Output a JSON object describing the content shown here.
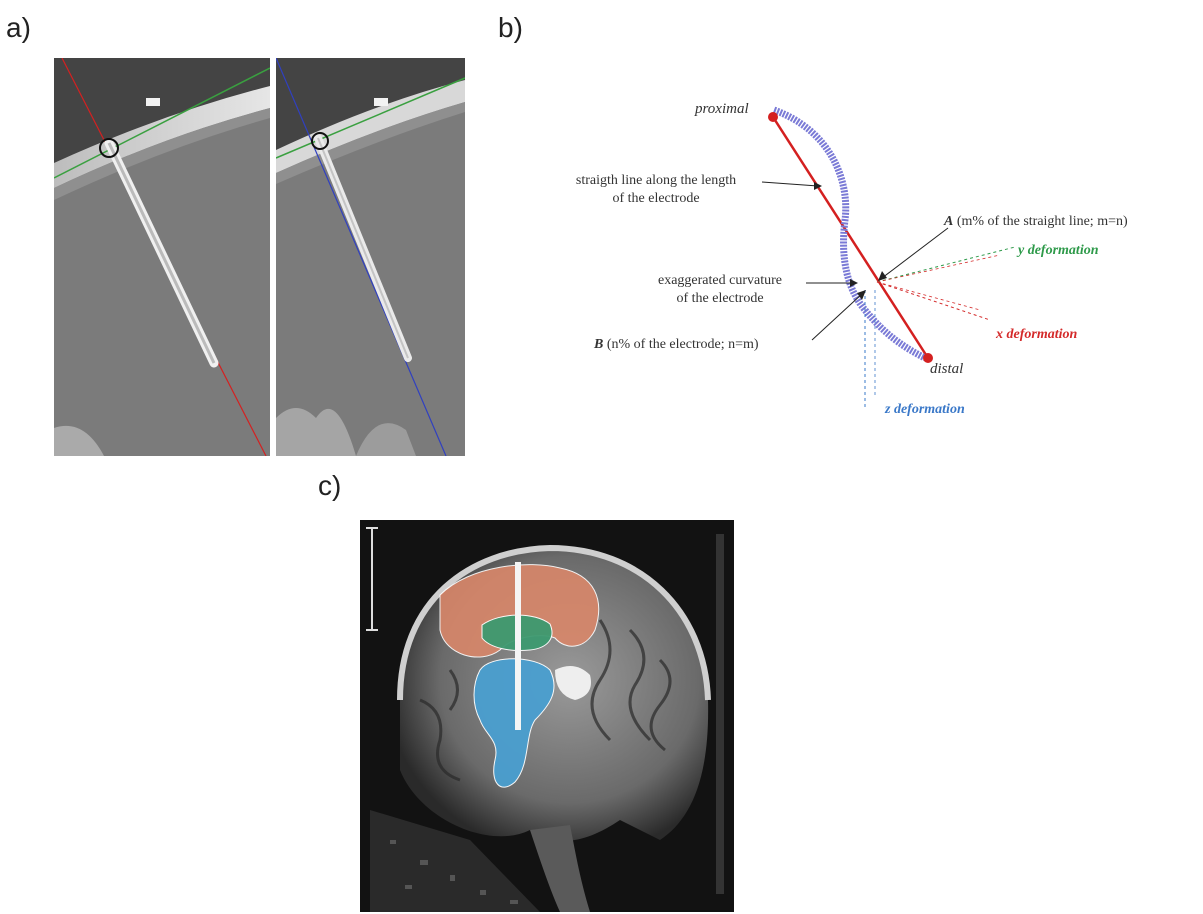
{
  "panels": {
    "a": {
      "label": "a)"
    },
    "b": {
      "label": "b)",
      "proximal": "proximal",
      "distal": "distal",
      "straight_line": [
        "straigth line along the length",
        "of the electrode"
      ],
      "curvature": [
        "exaggerated curvature",
        "of the electrode"
      ],
      "point_a_letter": "A",
      "point_a_text": "(m% of the straight line; m=n)",
      "point_b_letter": "B",
      "point_b_text": "(n% of the electrode; n=m)",
      "y_deformation": "y deformation",
      "x_deformation": "x deformation",
      "z_deformation": "z deformation"
    },
    "c": {
      "label": "c)"
    }
  },
  "colors": {
    "red_line": "#d42020",
    "blue_line": "#3040c0",
    "green_line": "#3aa040",
    "electrode_blue": "#7a7ad6",
    "y_green": "#2e9a4a",
    "x_red": "#d42a2a",
    "z_blue": "#3a78c8",
    "seg_orange": "#d9876a",
    "seg_green": "#3d9a70",
    "seg_blue": "#4a9fd0"
  }
}
